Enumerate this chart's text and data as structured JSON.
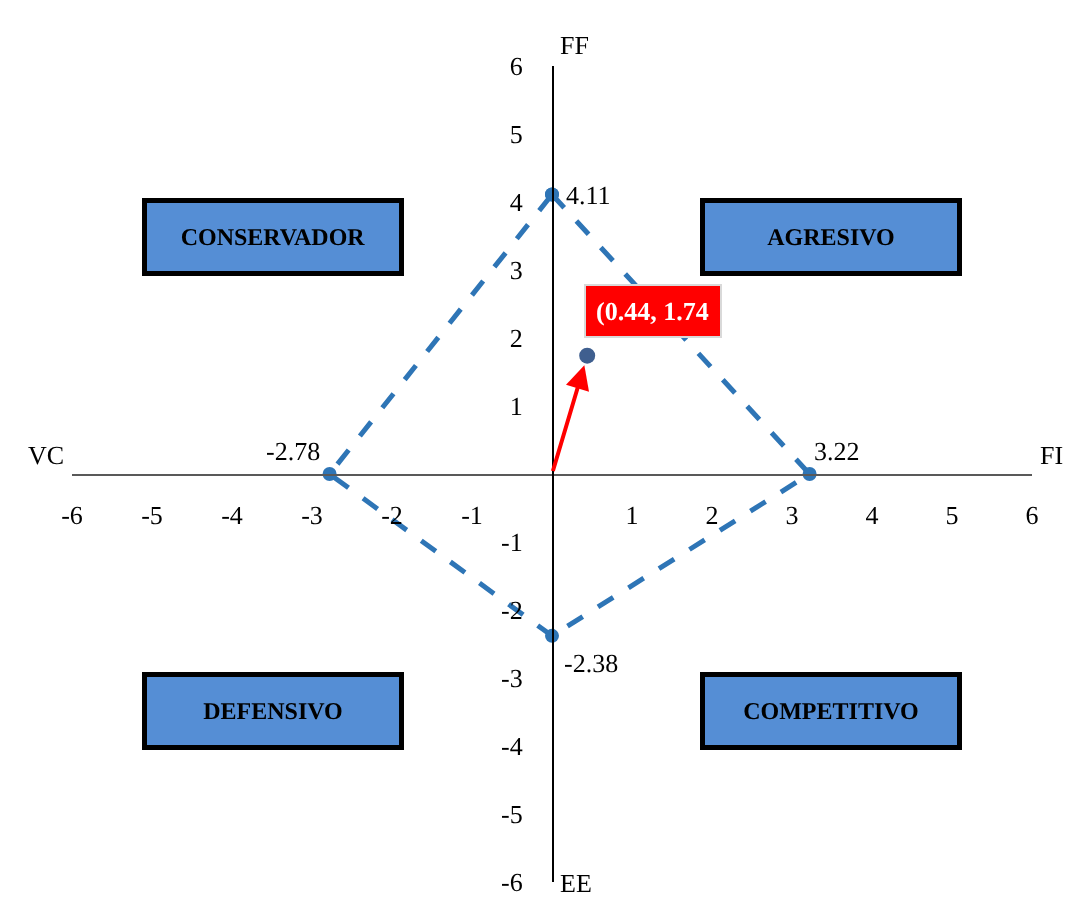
{
  "chart_data": {
    "type": "scatter",
    "series": [
      {
        "color": "#2e75b6",
        "x": [
          0,
          3.22,
          0,
          -2.78,
          0
        ],
        "values": [
          4.11,
          0,
          -2.38,
          0,
          4.11
        ]
      },
      {
        "color": "#3f5f8f",
        "x": [
          0.44
        ],
        "values": [
          1.74
        ],
        "value_labels": [
          "(0.44, 1.74"
        ]
      }
    ],
    "marker": "circle",
    "line_style": "dashed",
    "xlim": [
      -6,
      6
    ],
    "ylim": [
      -6,
      6
    ],
    "xticks": [
      -6,
      -5,
      -4,
      -3,
      -2,
      -1,
      1,
      2,
      3,
      4,
      5,
      6
    ],
    "yticks": [
      -6,
      -5,
      -4,
      -3,
      -2,
      -1,
      1,
      2,
      3,
      4,
      5,
      6
    ],
    "annotations": [
      "FF",
      {
        "text": "4.11",
        "x": 0,
        "y": 4.11
      },
      "CONSERVADOR",
      "AGRESIVO",
      "VC",
      {
        "text": "-2.78",
        "x": -2.78,
        "y": 0
      },
      {
        "text": "3.22",
        "x": 3.22,
        "y": 0
      },
      "FI",
      {
        "text": "-2.38",
        "x": 0,
        "y": -2.38
      },
      "DEFENSIVO",
      "COMPETITIVO",
      "EE"
    ]
  }
}
